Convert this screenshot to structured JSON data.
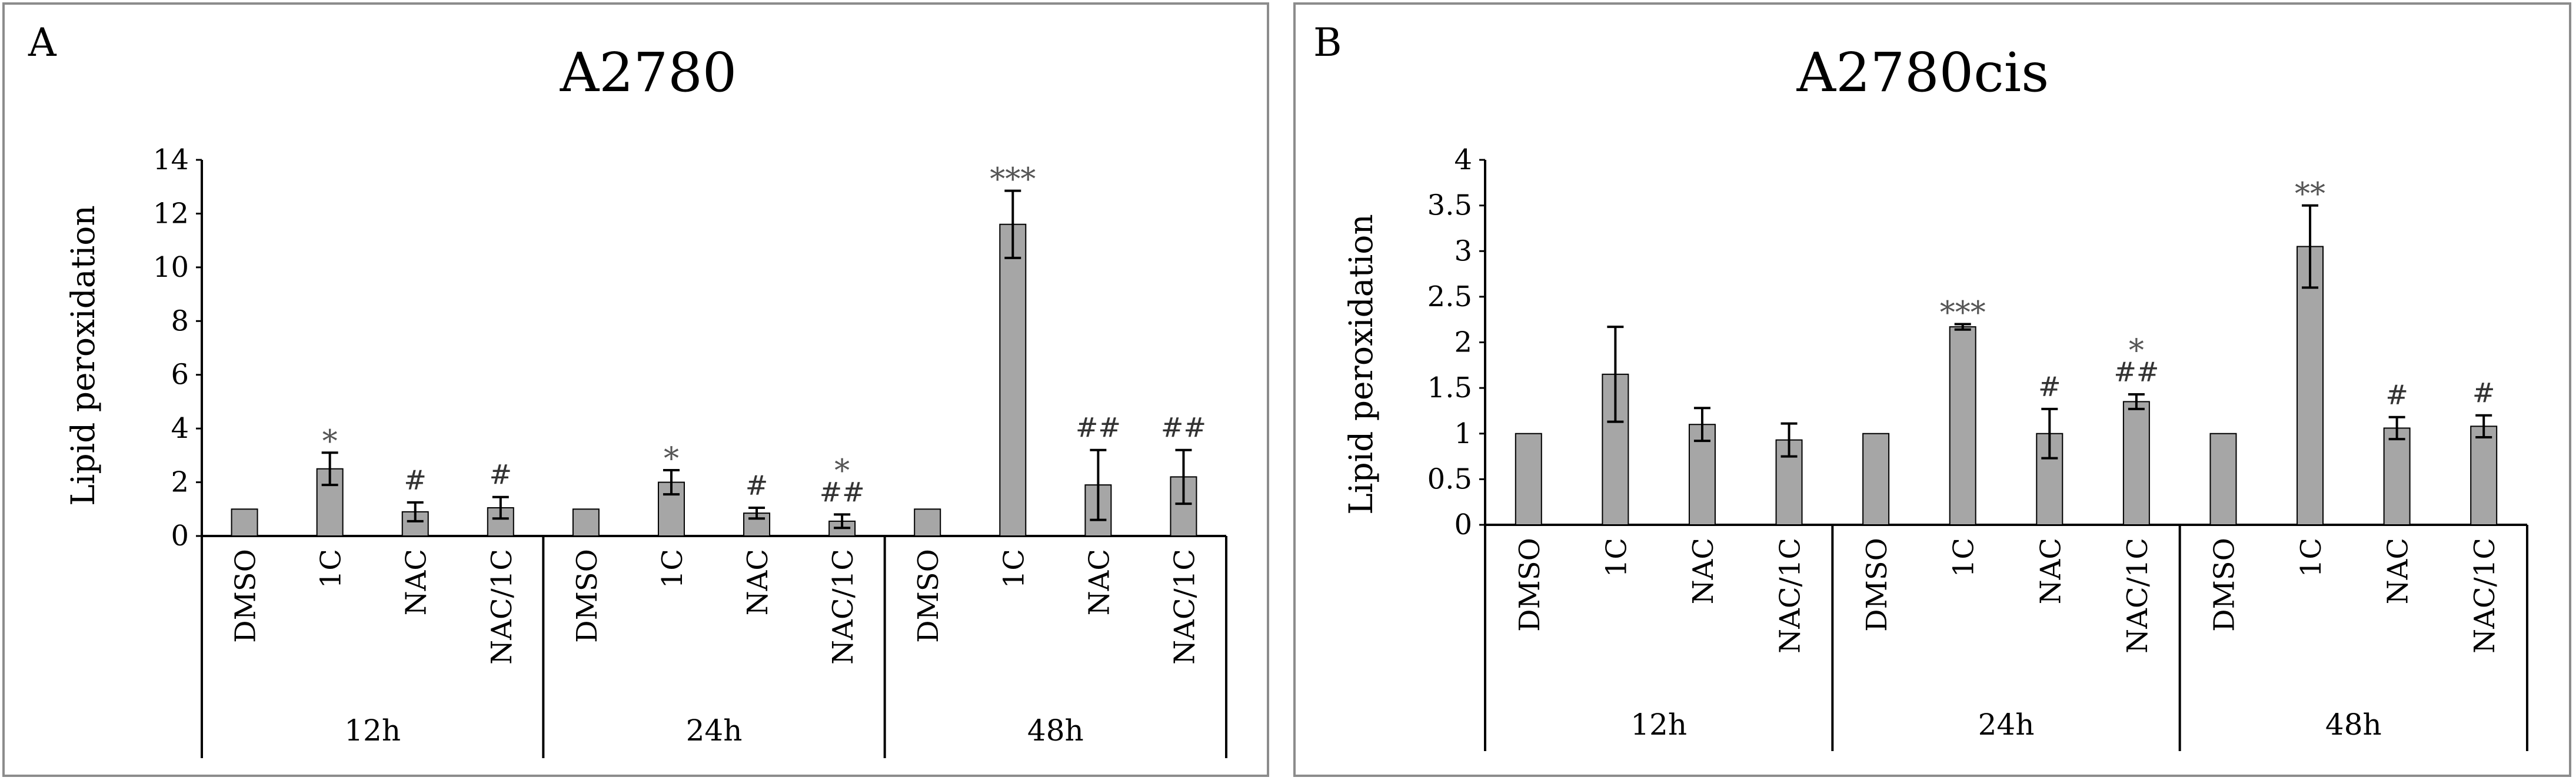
{
  "panels": [
    {
      "letter": "A",
      "chart_data": {
        "type": "bar",
        "title": "A2780",
        "ylabel": "Lipid peroxidation",
        "xlabel": "",
        "ylim": [
          0,
          14
        ],
        "yticks": [
          0,
          2,
          4,
          6,
          8,
          10,
          12,
          14
        ],
        "ytick_labels": [
          "0",
          "2",
          "4",
          "6",
          "8",
          "10",
          "12",
          "14"
        ],
        "grid": false,
        "groups": [
          "12h",
          "24h",
          "48h"
        ],
        "categories": [
          "DMSO",
          "1C",
          "NAC",
          "NAC/1C",
          "DMSO",
          "1C",
          "NAC",
          "NAC/1C",
          "DMSO",
          "1C",
          "NAC",
          "NAC/1C"
        ],
        "values": [
          1.0,
          2.5,
          0.9,
          1.05,
          1.0,
          2.0,
          0.85,
          0.55,
          1.0,
          11.6,
          1.9,
          2.2
        ],
        "errors": [
          0.0,
          0.6,
          0.35,
          0.4,
          0.0,
          0.45,
          0.2,
          0.25,
          0.0,
          1.25,
          1.3,
          1.0
        ],
        "annotations": [
          "",
          "*",
          "#",
          "#",
          "",
          "*",
          "#",
          "*\n##",
          "",
          "***",
          "##",
          "##"
        ],
        "bar_color": "#a6a6a6"
      }
    },
    {
      "letter": "B",
      "chart_data": {
        "type": "bar",
        "title": "A2780cis",
        "ylabel": "Lipid peroxidation",
        "xlabel": "",
        "ylim": [
          0,
          4
        ],
        "yticks": [
          0,
          0.5,
          1,
          1.5,
          2,
          2.5,
          3,
          3.5,
          4
        ],
        "ytick_labels": [
          "0",
          "0.5",
          "1",
          "1.5",
          "2",
          "2.5",
          "3",
          "3.5",
          "4"
        ],
        "grid": false,
        "groups": [
          "12h",
          "24h",
          "48h"
        ],
        "categories": [
          "DMSO",
          "1C",
          "NAC",
          "NAC/1C",
          "DMSO",
          "1C",
          "NAC",
          "NAC/1C",
          "DMSO",
          "1C",
          "NAC",
          "NAC/1C"
        ],
        "values": [
          1.0,
          1.65,
          1.1,
          0.93,
          1.0,
          2.17,
          1.0,
          1.35,
          1.0,
          3.05,
          1.06,
          1.08
        ],
        "errors": [
          0.0,
          0.52,
          0.18,
          0.18,
          0.0,
          0.03,
          0.27,
          0.08,
          0.0,
          0.45,
          0.12,
          0.12
        ],
        "annotations": [
          "",
          "",
          "",
          "",
          "",
          "***",
          "#",
          "*\n##",
          "",
          "**",
          "#",
          "#"
        ],
        "bar_color": "#a6a6a6"
      }
    }
  ]
}
